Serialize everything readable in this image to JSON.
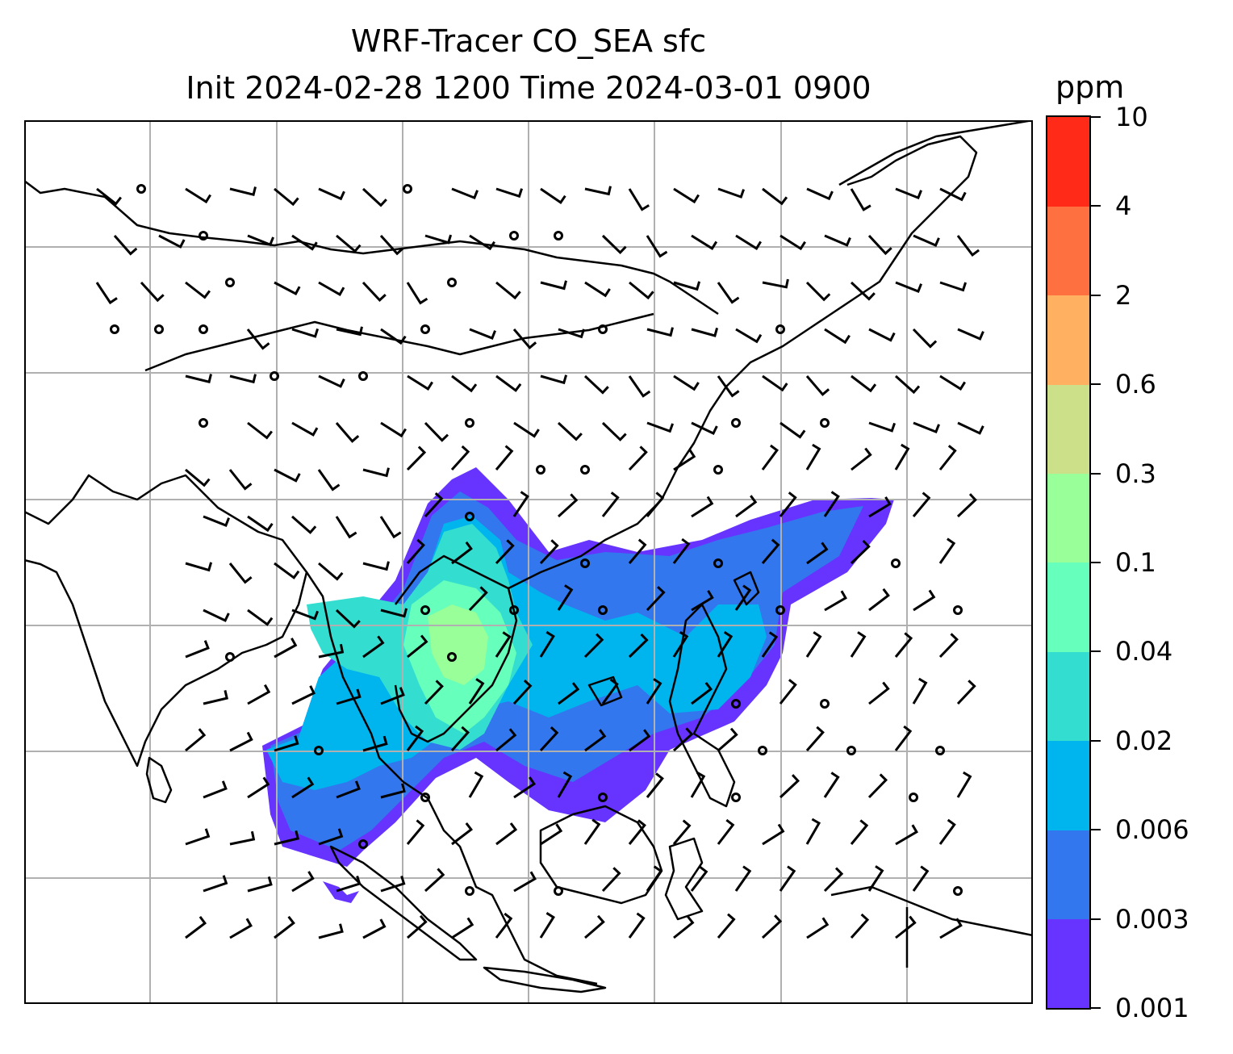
{
  "title": {
    "line1": "WRF-Tracer CO_SEA sfc",
    "line2": "Init 2024-02-28 1200 Time 2024-03-01 0900"
  },
  "colorbar": {
    "unit": "ppm",
    "levels": [
      "0.001",
      "0.003",
      "0.006",
      "0.02",
      "0.04",
      "0.1",
      "0.3",
      "0.6",
      "2",
      "4",
      "10"
    ],
    "colors": [
      "#6633ff",
      "#3377ee",
      "#00b4ee",
      "#33ddd0",
      "#66ffbb",
      "#99ff99",
      "#cce08a",
      "#ffb060",
      "#ff7040",
      "#ff2a18"
    ]
  },
  "map": {
    "gridlines": true,
    "coastline_color": "#000000",
    "grid_color": "#b0b0b0",
    "field_colors": {
      "level1": "#6633ff",
      "level2": "#3377ee",
      "level3": "#00b4ee",
      "level4": "#33ddd0",
      "level5": "#66ffbb",
      "level6": "#99ff99"
    },
    "wind_barb_icon": "wind-barb-icon",
    "calm_icon": "calm-circle-icon"
  }
}
